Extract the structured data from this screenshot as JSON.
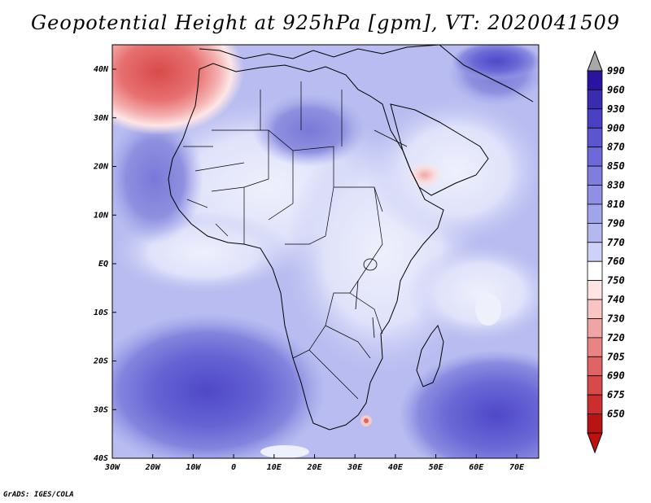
{
  "title": "Geopotential Height at 925hPa [gpm], VT: 2020041509",
  "credit": "GrADS: IGES/COLA",
  "lat_ticks": [
    "40N",
    "30N",
    "20N",
    "10N",
    "EQ",
    "10S",
    "20S",
    "30S",
    "40S"
  ],
  "lon_ticks": [
    "30W",
    "20W",
    "10W",
    "0",
    "10E",
    "20E",
    "30E",
    "40E",
    "50E",
    "60E",
    "70E"
  ],
  "colorbar": {
    "labels": [
      "990",
      "960",
      "930",
      "900",
      "870",
      "850",
      "830",
      "810",
      "790",
      "770",
      "760",
      "750",
      "740",
      "730",
      "720",
      "705",
      "690",
      "675",
      "650"
    ],
    "colors": [
      "#2a13a0",
      "#3a2cb0",
      "#4a40c4",
      "#5c55d0",
      "#6e69d8",
      "#7f7ede",
      "#8f90e4",
      "#a0a4ea",
      "#b4b8f0",
      "#cfd2f8",
      "#ffffff",
      "#ffe4e4",
      "#f8c4c4",
      "#f0a4a4",
      "#e88484",
      "#e06464",
      "#d84a4a",
      "#cc2e2e",
      "#b81414"
    ],
    "top_arrow": "#a8a8a8",
    "bottom_arrow": "#c01010"
  },
  "map": {
    "background": "#c4c8f2",
    "low_region": "#e04c4c",
    "land_outline": "#000000"
  }
}
